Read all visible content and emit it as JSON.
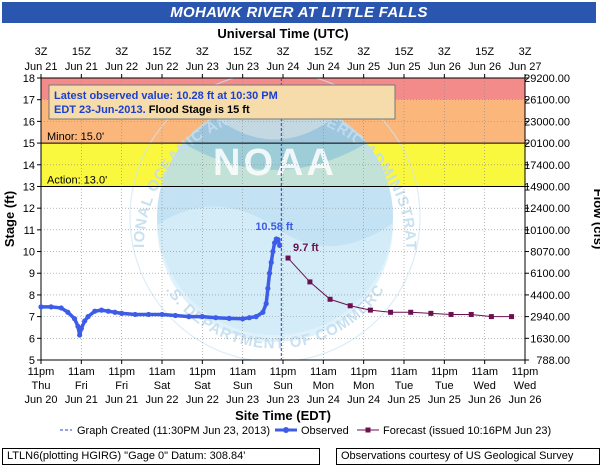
{
  "title": "MOHAWK RIVER AT LITTLE FALLS",
  "footer": {
    "left": "LTLN6(plotting HGIRG) \"Gage 0\" Datum: 308.84'",
    "right": "Observations courtesy of US Geological Survey"
  },
  "colors": {
    "title_bg": "#2b56b0",
    "observed": "#3d5ce8",
    "forecast": "#6b1050",
    "major_band": "#f38b8b",
    "moderate_band": "#fbb67c",
    "minor_band": "#f9f73e",
    "noaa_light": "#b9def3",
    "noaa_dark": "#5aa6d6"
  },
  "watermark": {
    "logo_text": "NOAA",
    "ring_text": "NATIONAL OCEANIC AND ATMOSPHERIC ADMINISTRATION",
    "bottom_text": "U.S. DEPARTMENT OF COMMERCE"
  },
  "chart_data": {
    "type": "line",
    "top_axis_title": "Universal Time (UTC)",
    "xlabel": "Site Time (EDT)",
    "ylabel": "Stage (ft)",
    "y2label": "Flow (cfs)",
    "xlim": [
      0,
      144
    ],
    "ylim": [
      5,
      18
    ],
    "grid": true,
    "y_ticks": [
      5,
      6,
      7,
      8,
      9,
      10,
      11,
      12,
      13,
      14,
      15,
      16,
      17,
      18
    ],
    "flow_ticks": [
      {
        "stage": 5,
        "label": "788.00"
      },
      {
        "stage": 6,
        "label": "1630.00"
      },
      {
        "stage": 7,
        "label": "2940.00"
      },
      {
        "stage": 8,
        "label": "4400.00"
      },
      {
        "stage": 9,
        "label": "6100.00"
      },
      {
        "stage": 10,
        "label": "8070.00"
      },
      {
        "stage": 11,
        "label": "10100.00"
      },
      {
        "stage": 12,
        "label": "12400.00"
      },
      {
        "stage": 13,
        "label": "14900.00"
      },
      {
        "stage": 14,
        "label": "17400.00"
      },
      {
        "stage": 15,
        "label": "20100.00"
      },
      {
        "stage": 16,
        "label": "23000.00"
      },
      {
        "stage": 17,
        "label": "26100.00"
      },
      {
        "stage": 18,
        "label": "29200.00"
      }
    ],
    "bottom_ticks": [
      {
        "x": 0,
        "time": "11pm",
        "day": "Thu",
        "date": "Jun 20"
      },
      {
        "x": 12,
        "time": "11am",
        "day": "Fri",
        "date": "Jun 21"
      },
      {
        "x": 24,
        "time": "11pm",
        "day": "Fri",
        "date": "Jun 21"
      },
      {
        "x": 36,
        "time": "11am",
        "day": "Sat",
        "date": "Jun 22"
      },
      {
        "x": 48,
        "time": "11pm",
        "day": "Sat",
        "date": "Jun 22"
      },
      {
        "x": 60,
        "time": "11am",
        "day": "Sun",
        "date": "Jun 23"
      },
      {
        "x": 72,
        "time": "11pm",
        "day": "Sun",
        "date": "Jun 23"
      },
      {
        "x": 84,
        "time": "11am",
        "day": "Mon",
        "date": "Jun 24"
      },
      {
        "x": 96,
        "time": "11pm",
        "day": "Mon",
        "date": "Jun 24"
      },
      {
        "x": 108,
        "time": "11am",
        "day": "Tue",
        "date": "Jun 25"
      },
      {
        "x": 120,
        "time": "11pm",
        "day": "Tue",
        "date": "Jun 25"
      },
      {
        "x": 132,
        "time": "11am",
        "day": "Wed",
        "date": "Jun 26"
      },
      {
        "x": 144,
        "time": "11pm",
        "day": "Wed",
        "date": "Jun 26"
      }
    ],
    "top_ticks": [
      {
        "x": 0,
        "time": "3Z",
        "date": "Jun 21"
      },
      {
        "x": 12,
        "time": "15Z",
        "date": "Jun 21"
      },
      {
        "x": 24,
        "time": "3Z",
        "date": "Jun 22"
      },
      {
        "x": 36,
        "time": "15Z",
        "date": "Jun 22"
      },
      {
        "x": 48,
        "time": "3Z",
        "date": "Jun 23"
      },
      {
        "x": 60,
        "time": "15Z",
        "date": "Jun 23"
      },
      {
        "x": 72,
        "time": "3Z",
        "date": "Jun 24"
      },
      {
        "x": 84,
        "time": "15Z",
        "date": "Jun 24"
      },
      {
        "x": 96,
        "time": "3Z",
        "date": "Jun 25"
      },
      {
        "x": 108,
        "time": "15Z",
        "date": "Jun 25"
      },
      {
        "x": 120,
        "time": "3Z",
        "date": "Jun 26"
      },
      {
        "x": 132,
        "time": "15Z",
        "date": "Jun 26"
      },
      {
        "x": 144,
        "time": "3Z",
        "date": "Jun 27"
      }
    ],
    "bands": [
      {
        "name": "major",
        "from": 17,
        "to": 18,
        "label": ""
      },
      {
        "name": "moderate",
        "from": 15,
        "to": 17,
        "label": ""
      },
      {
        "name": "minor",
        "from": 13,
        "to": 15,
        "label": "Minor: 15.0'"
      },
      {
        "name": "action",
        "from": 13,
        "to": 13,
        "label": "Action: 13.0'"
      }
    ],
    "graph_created_x": 71.5,
    "series": [
      {
        "name": "Observed",
        "x": [
          0,
          3,
          6,
          8,
          10,
          11,
          11.5,
          12,
          13,
          14,
          16,
          18,
          20,
          22,
          24,
          28,
          32,
          36,
          40,
          44,
          48,
          52,
          56,
          60,
          62,
          64,
          66,
          67,
          67.5,
          68,
          68.5,
          69,
          69.5,
          70,
          70.5,
          71
        ],
        "y": [
          7.45,
          7.45,
          7.4,
          7.2,
          6.9,
          6.55,
          6.15,
          6.45,
          6.8,
          7.0,
          7.25,
          7.3,
          7.25,
          7.2,
          7.15,
          7.1,
          7.1,
          7.1,
          7.05,
          7.0,
          7.0,
          6.95,
          6.92,
          6.9,
          6.95,
          7.0,
          7.2,
          7.6,
          8.3,
          9.0,
          9.5,
          10.0,
          10.4,
          10.58,
          10.55,
          10.28
        ]
      },
      {
        "name": "Forecast",
        "x": [
          73.5,
          80,
          86,
          92,
          98,
          104,
          110,
          116,
          122,
          128,
          134,
          140
        ],
        "y": [
          9.7,
          8.6,
          7.8,
          7.5,
          7.3,
          7.2,
          7.2,
          7.15,
          7.1,
          7.1,
          7.0,
          7.0
        ]
      }
    ],
    "annotations": {
      "peak": {
        "x": 70,
        "y": 10.58,
        "label": "10.58 ft"
      },
      "forecast_crest": {
        "x": 73.5,
        "y": 9.7,
        "label": "9.7 ft"
      }
    },
    "info_box": {
      "line1": "Latest observed value: 10.28 ft at 10:30 PM",
      "line2": "EDT 23-Jun-2013.",
      "line2b": "Flood Stage is 15 ft"
    },
    "legend": {
      "created": "Graph Created (11:30PM Jun 23, 2013)",
      "observed": "Observed",
      "forecast": "Forecast (issued 10:16PM Jun 23)"
    }
  }
}
